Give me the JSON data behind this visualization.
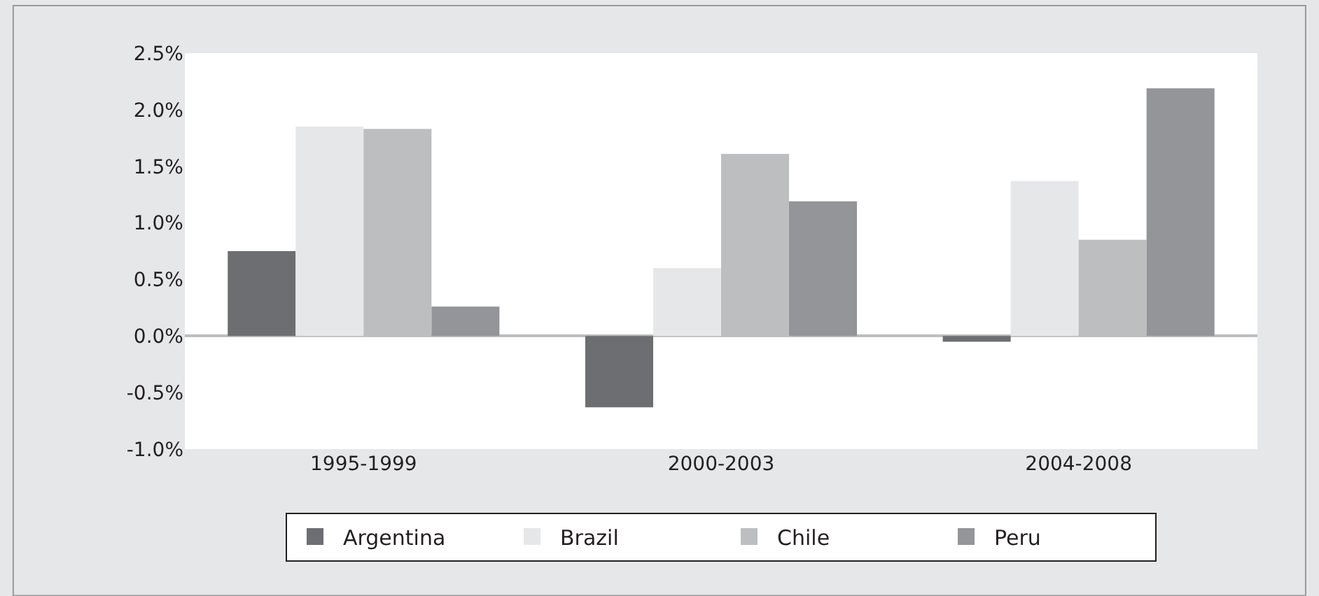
{
  "chart_data": {
    "type": "bar",
    "categories": [
      "1995-1999",
      "2000-2003",
      "2004-2008"
    ],
    "series": [
      {
        "name": "Argentina",
        "color": "#6d6e71",
        "values": [
          0.75,
          -0.63,
          -0.05
        ]
      },
      {
        "name": "Brazil",
        "color": "#e6e7e8",
        "values": [
          1.85,
          0.6,
          1.37
        ]
      },
      {
        "name": "Chile",
        "color": "#bcbec0",
        "values": [
          1.83,
          1.61,
          0.85
        ]
      },
      {
        "name": "Peru",
        "color": "#939598",
        "values": [
          0.26,
          1.19,
          2.19
        ]
      }
    ],
    "ylim": [
      -1.0,
      2.5
    ],
    "yticks": [
      {
        "value": -1.0,
        "label": "-1.0%"
      },
      {
        "value": -0.5,
        "label": "-0.5%"
      },
      {
        "value": 0,
        "label": "0.0%"
      },
      {
        "value": 0.5,
        "label": "0.5%"
      },
      {
        "value": 1.0,
        "label": "1.0%"
      },
      {
        "value": 1.5,
        "label": "1.5%"
      },
      {
        "value": 2.0,
        "label": "2.0%"
      },
      {
        "value": 2.5,
        "label": "2.5%"
      }
    ],
    "legend": "bottom"
  }
}
